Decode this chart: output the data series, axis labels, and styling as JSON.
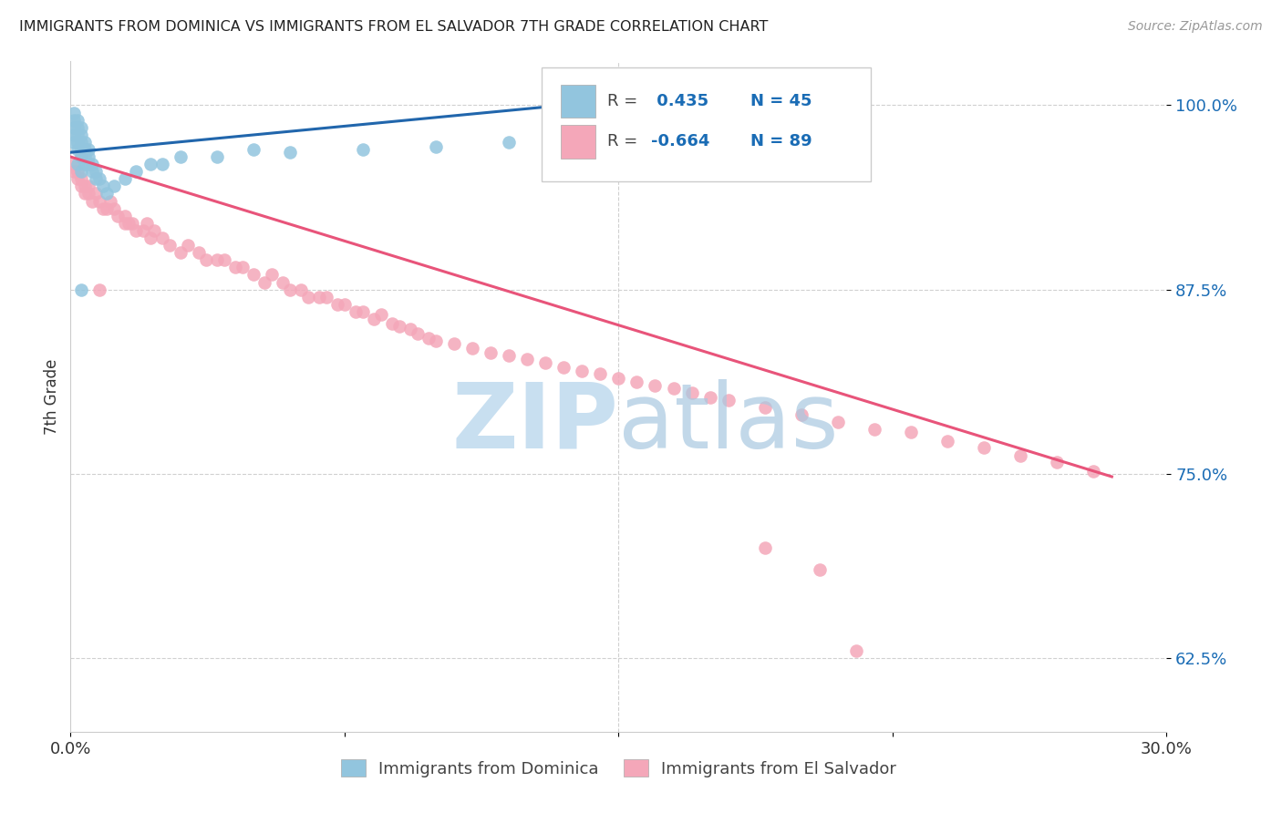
{
  "title": "IMMIGRANTS FROM DOMINICA VS IMMIGRANTS FROM EL SALVADOR 7TH GRADE CORRELATION CHART",
  "source": "Source: ZipAtlas.com",
  "ylabel": "7th Grade",
  "ytick_labels": [
    "62.5%",
    "75.0%",
    "87.5%",
    "100.0%"
  ],
  "ytick_values": [
    0.625,
    0.75,
    0.875,
    1.0
  ],
  "xlim": [
    0.0,
    0.3
  ],
  "ylim": [
    0.575,
    1.03
  ],
  "blue_color": "#92c5de",
  "pink_color": "#f4a7b9",
  "blue_line_color": "#2166ac",
  "pink_line_color": "#e8547a",
  "blue_line_x0": 0.0,
  "blue_line_y0": 0.968,
  "blue_line_x1": 0.135,
  "blue_line_y1": 1.0,
  "pink_line_x0": 0.0,
  "pink_line_y0": 0.965,
  "pink_line_x1": 0.285,
  "pink_line_y1": 0.748,
  "legend_r1": "R = ",
  "legend_v1": " 0.435",
  "legend_n1": "N = 45",
  "legend_r2": "R = ",
  "legend_v2": "-0.664",
  "legend_n2": "N = 89",
  "background_color": "#ffffff",
  "grid_color": "#d0d0d0",
  "blue_x": [
    0.001,
    0.001,
    0.001,
    0.001,
    0.001,
    0.002,
    0.002,
    0.002,
    0.002,
    0.002,
    0.002,
    0.003,
    0.003,
    0.003,
    0.003,
    0.003,
    0.003,
    0.004,
    0.004,
    0.004,
    0.004,
    0.005,
    0.005,
    0.005,
    0.006,
    0.006,
    0.007,
    0.007,
    0.008,
    0.009,
    0.01,
    0.012,
    0.015,
    0.018,
    0.022,
    0.03,
    0.04,
    0.05,
    0.06,
    0.08,
    0.1,
    0.12,
    0.135,
    0.003,
    0.025
  ],
  "blue_y": [
    0.975,
    0.98,
    0.985,
    0.99,
    0.995,
    0.97,
    0.975,
    0.98,
    0.985,
    0.99,
    0.96,
    0.965,
    0.97,
    0.975,
    0.98,
    0.985,
    0.955,
    0.96,
    0.965,
    0.97,
    0.975,
    0.96,
    0.965,
    0.97,
    0.955,
    0.96,
    0.95,
    0.955,
    0.95,
    0.945,
    0.94,
    0.945,
    0.95,
    0.955,
    0.96,
    0.965,
    0.965,
    0.97,
    0.968,
    0.97,
    0.972,
    0.975,
    0.998,
    0.875,
    0.96
  ],
  "pink_x": [
    0.001,
    0.001,
    0.002,
    0.002,
    0.003,
    0.003,
    0.004,
    0.004,
    0.005,
    0.005,
    0.006,
    0.007,
    0.008,
    0.009,
    0.01,
    0.011,
    0.012,
    0.013,
    0.015,
    0.016,
    0.017,
    0.018,
    0.02,
    0.021,
    0.022,
    0.023,
    0.025,
    0.027,
    0.03,
    0.032,
    0.035,
    0.037,
    0.04,
    0.042,
    0.045,
    0.047,
    0.05,
    0.053,
    0.055,
    0.058,
    0.06,
    0.063,
    0.065,
    0.068,
    0.07,
    0.073,
    0.075,
    0.078,
    0.08,
    0.083,
    0.085,
    0.088,
    0.09,
    0.093,
    0.095,
    0.098,
    0.1,
    0.105,
    0.11,
    0.115,
    0.12,
    0.125,
    0.13,
    0.135,
    0.14,
    0.145,
    0.15,
    0.155,
    0.16,
    0.165,
    0.17,
    0.175,
    0.18,
    0.19,
    0.2,
    0.21,
    0.22,
    0.23,
    0.24,
    0.25,
    0.26,
    0.27,
    0.28,
    0.003,
    0.008,
    0.015,
    0.19,
    0.205,
    0.215
  ],
  "pink_y": [
    0.96,
    0.955,
    0.955,
    0.95,
    0.945,
    0.95,
    0.945,
    0.94,
    0.94,
    0.945,
    0.935,
    0.94,
    0.935,
    0.93,
    0.93,
    0.935,
    0.93,
    0.925,
    0.925,
    0.92,
    0.92,
    0.915,
    0.915,
    0.92,
    0.91,
    0.915,
    0.91,
    0.905,
    0.9,
    0.905,
    0.9,
    0.895,
    0.895,
    0.895,
    0.89,
    0.89,
    0.885,
    0.88,
    0.885,
    0.88,
    0.875,
    0.875,
    0.87,
    0.87,
    0.87,
    0.865,
    0.865,
    0.86,
    0.86,
    0.855,
    0.858,
    0.852,
    0.85,
    0.848,
    0.845,
    0.842,
    0.84,
    0.838,
    0.835,
    0.832,
    0.83,
    0.828,
    0.825,
    0.822,
    0.82,
    0.818,
    0.815,
    0.812,
    0.81,
    0.808,
    0.805,
    0.802,
    0.8,
    0.795,
    0.79,
    0.785,
    0.78,
    0.778,
    0.772,
    0.768,
    0.762,
    0.758,
    0.752,
    0.965,
    0.875,
    0.92,
    0.7,
    0.685,
    0.63
  ],
  "watermark_zip_color": "#c8dff0",
  "watermark_atlas_color": "#a8c8e0"
}
